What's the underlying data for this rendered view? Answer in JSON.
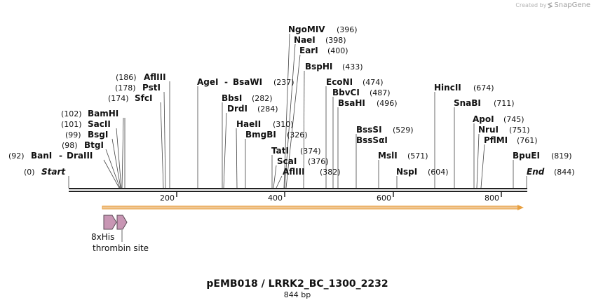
{
  "credit": {
    "text": "Created by",
    "brand": "SnapGene"
  },
  "map": {
    "total_bp": 844,
    "title": "pEMB018 / LRRK2_BC_1300_2232",
    "subtitle": "844 bp",
    "ticks": [
      "200",
      "400",
      "600",
      "800"
    ],
    "ends": [
      {
        "name": "Start",
        "pos": "(0)"
      },
      {
        "name": "End",
        "pos": "(844)"
      }
    ],
    "sites": [
      {
        "name": "BanI",
        "pos": "(92)"
      },
      {
        "name": "DraIII",
        "pos": ""
      },
      {
        "name": "BtgI",
        "pos": "(98)"
      },
      {
        "name": "BsgI",
        "pos": "(99)"
      },
      {
        "name": "SacII",
        "pos": "(101)"
      },
      {
        "name": "BamHI",
        "pos": "(102)"
      },
      {
        "name": "SfcI",
        "pos": "(174)"
      },
      {
        "name": "PstI",
        "pos": "(178)"
      },
      {
        "name": "AflIII",
        "pos": "(186)"
      },
      {
        "name": "AgeI",
        "pos": ""
      },
      {
        "name": "BsaWI",
        "pos": "(237)"
      },
      {
        "name": "BbsI",
        "pos": "(282)"
      },
      {
        "name": "DrdI",
        "pos": "(284)"
      },
      {
        "name": "HaeII",
        "pos": "(310)"
      },
      {
        "name": "BmgBI",
        "pos": "(326)"
      },
      {
        "name": "TatI",
        "pos": "(374)"
      },
      {
        "name": "ScaI",
        "pos": "(376)"
      },
      {
        "name": "AflIII",
        "pos": "(382)"
      },
      {
        "name": "NgoMIV",
        "pos": "(396)"
      },
      {
        "name": "NaeI",
        "pos": "(398)"
      },
      {
        "name": "EarI",
        "pos": "(400)"
      },
      {
        "name": "BspHI",
        "pos": "(433)"
      },
      {
        "name": "EcoNI",
        "pos": "(474)"
      },
      {
        "name": "BbvCI",
        "pos": "(487)"
      },
      {
        "name": "BsaHI",
        "pos": "(496)"
      },
      {
        "name": "BssSI",
        "pos": "(529)"
      },
      {
        "name": "BssSαI",
        "pos": ""
      },
      {
        "name": "MslI",
        "pos": "(571)"
      },
      {
        "name": "NspI",
        "pos": "(604)"
      },
      {
        "name": "HincII",
        "pos": "(674)"
      },
      {
        "name": "SnaBI",
        "pos": "(711)"
      },
      {
        "name": "ApoI",
        "pos": "(745)"
      },
      {
        "name": "NruI",
        "pos": "(751)"
      },
      {
        "name": "PflMI",
        "pos": "(761)"
      },
      {
        "name": "BpuEI",
        "pos": "(819)"
      }
    ],
    "features": [
      {
        "name": "8xHis"
      },
      {
        "name": "thrombin site"
      }
    ],
    "colors": {
      "feature_fill": "#c896b4",
      "feature_stroke": "#5a4a55",
      "orf_fill": "#f0c896",
      "orf_stroke": "#e8a040",
      "line": "#333333"
    }
  }
}
